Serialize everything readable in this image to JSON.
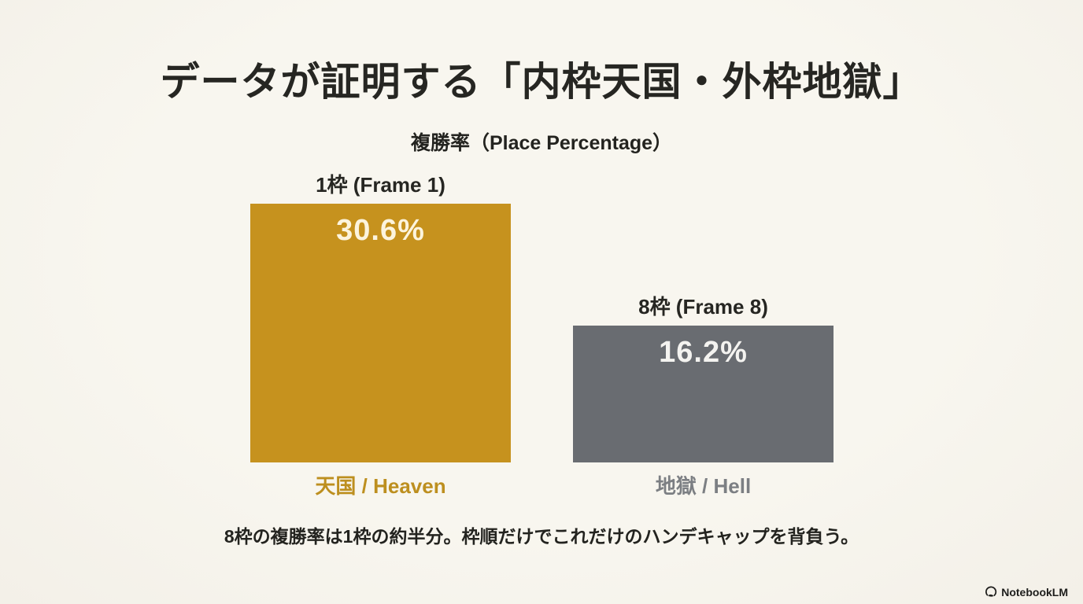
{
  "page": {
    "title": "データが証明する「内枠天国・外枠地獄」",
    "footnote": "8枠の複勝率は1枠の約半分。枠順だけでこれだけのハンデキャップを背負う。",
    "watermark": "NotebookLM",
    "background_color": "#f7f4ec"
  },
  "chart_data": {
    "type": "bar",
    "title": "複勝率（Place Percentage）",
    "categories": [
      "1枠 (Frame 1)",
      "8枠 (Frame 8)"
    ],
    "values": [
      30.6,
      16.2
    ],
    "value_labels": [
      "30.6%",
      "16.2%"
    ],
    "bar_colors": [
      "#c6921e",
      "#696c71"
    ],
    "value_text_colors": [
      "#fcf4dd",
      "#f4f3f0"
    ],
    "sublabels": [
      "天国 / Heaven",
      "地獄 / Hell"
    ],
    "sublabel_colors": [
      "#bd8f1f",
      "#7c7f83"
    ],
    "xlabel": "",
    "ylabel": "",
    "ylim": [
      0,
      32
    ],
    "grid": false,
    "legend": false,
    "annotation": "8枠の複勝率は1枠の約半分。枠順だけでこれだけのハンデキャップを背負う。"
  }
}
